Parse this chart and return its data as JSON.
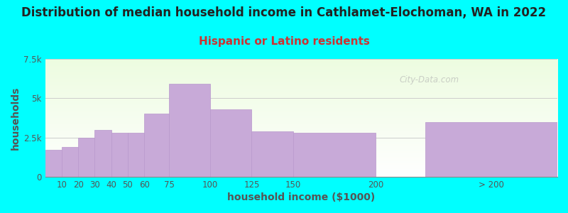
{
  "title": "Distribution of median household income in Cathlamet-Elochoman, WA in 2022",
  "subtitle": "Hispanic or Latino residents",
  "xlabel": "household income ($1000)",
  "ylabel": "households",
  "background_color": "#00FFFF",
  "plot_bg_colors": [
    "#ffffff",
    "#edfce0"
  ],
  "bar_color": "#c8aad8",
  "bar_edge_color": "#b898cc",
  "bin_lefts": [
    0,
    10,
    20,
    30,
    40,
    50,
    60,
    75,
    100,
    125,
    150,
    230
  ],
  "bin_widths": [
    10,
    10,
    10,
    10,
    10,
    10,
    15,
    25,
    25,
    25,
    50,
    80
  ],
  "bin_labels": [
    "10",
    "20",
    "30",
    "40",
    "50",
    "60",
    "75",
    "100",
    "125",
    "150",
    "200",
    "> 200"
  ],
  "values": [
    1700,
    1900,
    2500,
    3000,
    2800,
    2800,
    4000,
    5900,
    4300,
    2900,
    2800,
    3500
  ],
  "ylim": [
    0,
    7500
  ],
  "xlim": [
    0,
    310
  ],
  "yticks": [
    0,
    2500,
    5000,
    7500
  ],
  "ytick_labels": [
    "0",
    "2.5k",
    "5k",
    "7.5k"
  ],
  "xtick_positions": [
    10,
    20,
    30,
    40,
    50,
    60,
    75,
    100,
    125,
    150,
    200,
    270
  ],
  "watermark": "City-Data.com",
  "title_fontsize": 12,
  "subtitle_fontsize": 11,
  "axis_label_fontsize": 10,
  "tick_fontsize": 8.5,
  "subtitle_color": "#cc3333"
}
